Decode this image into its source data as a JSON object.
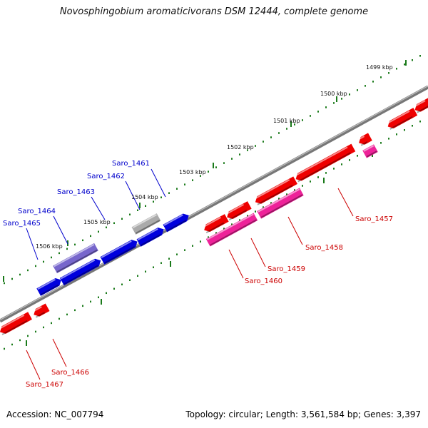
{
  "title": "Novosphingobium aromaticivorans DSM 12444, complete genome",
  "footer": {
    "accession": "Accession: NC_007794",
    "summary": "Topology: circular; Length: 3,561,584 bp; Genes: 3,397"
  },
  "colors": {
    "backbone": "#888888",
    "ticks": "#1a7a1a",
    "forward_gene": "#0000dd",
    "forward_gene_light": "#7766cc",
    "forward_gene_gray": "#aaaaaa",
    "reverse_gene": "#ee0000",
    "reverse_gene_pink": "#ee2299",
    "label_blue": "#0000cc",
    "label_red": "#cc0000"
  },
  "kbp_labels": [
    "1499 kbp",
    "1500 kbp",
    "1501 kbp",
    "1502 kbp",
    "1503 kbp",
    "1504 kbp",
    "1505 kbp",
    "1506 kbp"
  ],
  "gene_labels_top": [
    "Saro_1461",
    "Saro_1462",
    "Saro_1463",
    "Saro_1464",
    "Saro_1465"
  ],
  "gene_labels_bottom": [
    "Saro_1457",
    "Saro_1458",
    "Saro_1459",
    "Saro_1460",
    "Saro_1466",
    "Saro_1467"
  ]
}
